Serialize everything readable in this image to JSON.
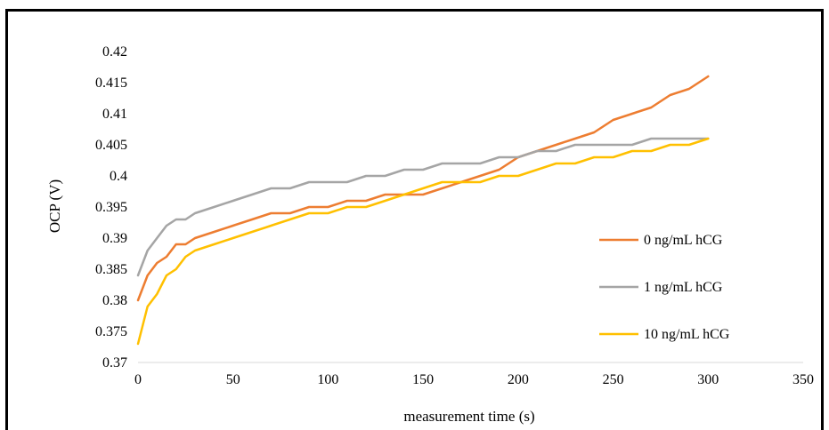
{
  "chart_data": {
    "type": "line",
    "title": "",
    "xlabel": "measurement time (s)",
    "ylabel": "OCP (V)",
    "xlim": [
      0,
      350
    ],
    "ylim": [
      0.37,
      0.42
    ],
    "x_ticks": [
      "0",
      "50",
      "100",
      "150",
      "200",
      "250",
      "300",
      "350"
    ],
    "y_ticks": [
      "0.37",
      "0.375",
      "0.38",
      "0.385",
      "0.39",
      "0.395",
      "0.4",
      "0.405",
      "0.41",
      "0.415",
      "0.42"
    ],
    "grid": false,
    "legend_position": "right",
    "series": [
      {
        "name": "0 ng/mL hCG",
        "color": "#ED7D31",
        "x": [
          0,
          5,
          10,
          15,
          20,
          25,
          30,
          40,
          50,
          60,
          70,
          80,
          90,
          100,
          110,
          120,
          130,
          140,
          150,
          160,
          170,
          180,
          190,
          200,
          210,
          220,
          230,
          240,
          250,
          260,
          270,
          280,
          290,
          300
        ],
        "y": [
          0.38,
          0.384,
          0.386,
          0.387,
          0.389,
          0.389,
          0.39,
          0.391,
          0.392,
          0.393,
          0.394,
          0.394,
          0.395,
          0.395,
          0.396,
          0.396,
          0.397,
          0.397,
          0.397,
          0.398,
          0.399,
          0.4,
          0.401,
          0.403,
          0.404,
          0.405,
          0.406,
          0.407,
          0.409,
          0.41,
          0.411,
          0.413,
          0.414,
          0.416
        ]
      },
      {
        "name": "1 ng/mL hCG",
        "color": "#A5A5A5",
        "x": [
          0,
          5,
          10,
          15,
          20,
          25,
          30,
          40,
          50,
          60,
          70,
          80,
          90,
          100,
          110,
          120,
          130,
          140,
          150,
          160,
          170,
          180,
          190,
          200,
          210,
          220,
          230,
          240,
          250,
          260,
          270,
          280,
          290,
          300
        ],
        "y": [
          0.384,
          0.388,
          0.39,
          0.392,
          0.393,
          0.393,
          0.394,
          0.395,
          0.396,
          0.397,
          0.398,
          0.398,
          0.399,
          0.399,
          0.399,
          0.4,
          0.4,
          0.401,
          0.401,
          0.402,
          0.402,
          0.402,
          0.403,
          0.403,
          0.404,
          0.404,
          0.405,
          0.405,
          0.405,
          0.405,
          0.406,
          0.406,
          0.406,
          0.406
        ]
      },
      {
        "name": "10 ng/mL hCG",
        "color": "#FFC000",
        "x": [
          0,
          5,
          10,
          15,
          20,
          25,
          30,
          40,
          50,
          60,
          70,
          80,
          90,
          100,
          110,
          120,
          130,
          140,
          150,
          160,
          170,
          180,
          190,
          200,
          210,
          220,
          230,
          240,
          250,
          260,
          270,
          280,
          290,
          300
        ],
        "y": [
          0.373,
          0.379,
          0.381,
          0.384,
          0.385,
          0.387,
          0.388,
          0.389,
          0.39,
          0.391,
          0.392,
          0.393,
          0.394,
          0.394,
          0.395,
          0.395,
          0.396,
          0.397,
          0.398,
          0.399,
          0.399,
          0.399,
          0.4,
          0.4,
          0.401,
          0.402,
          0.402,
          0.403,
          0.403,
          0.404,
          0.404,
          0.405,
          0.405,
          0.406
        ]
      }
    ]
  }
}
